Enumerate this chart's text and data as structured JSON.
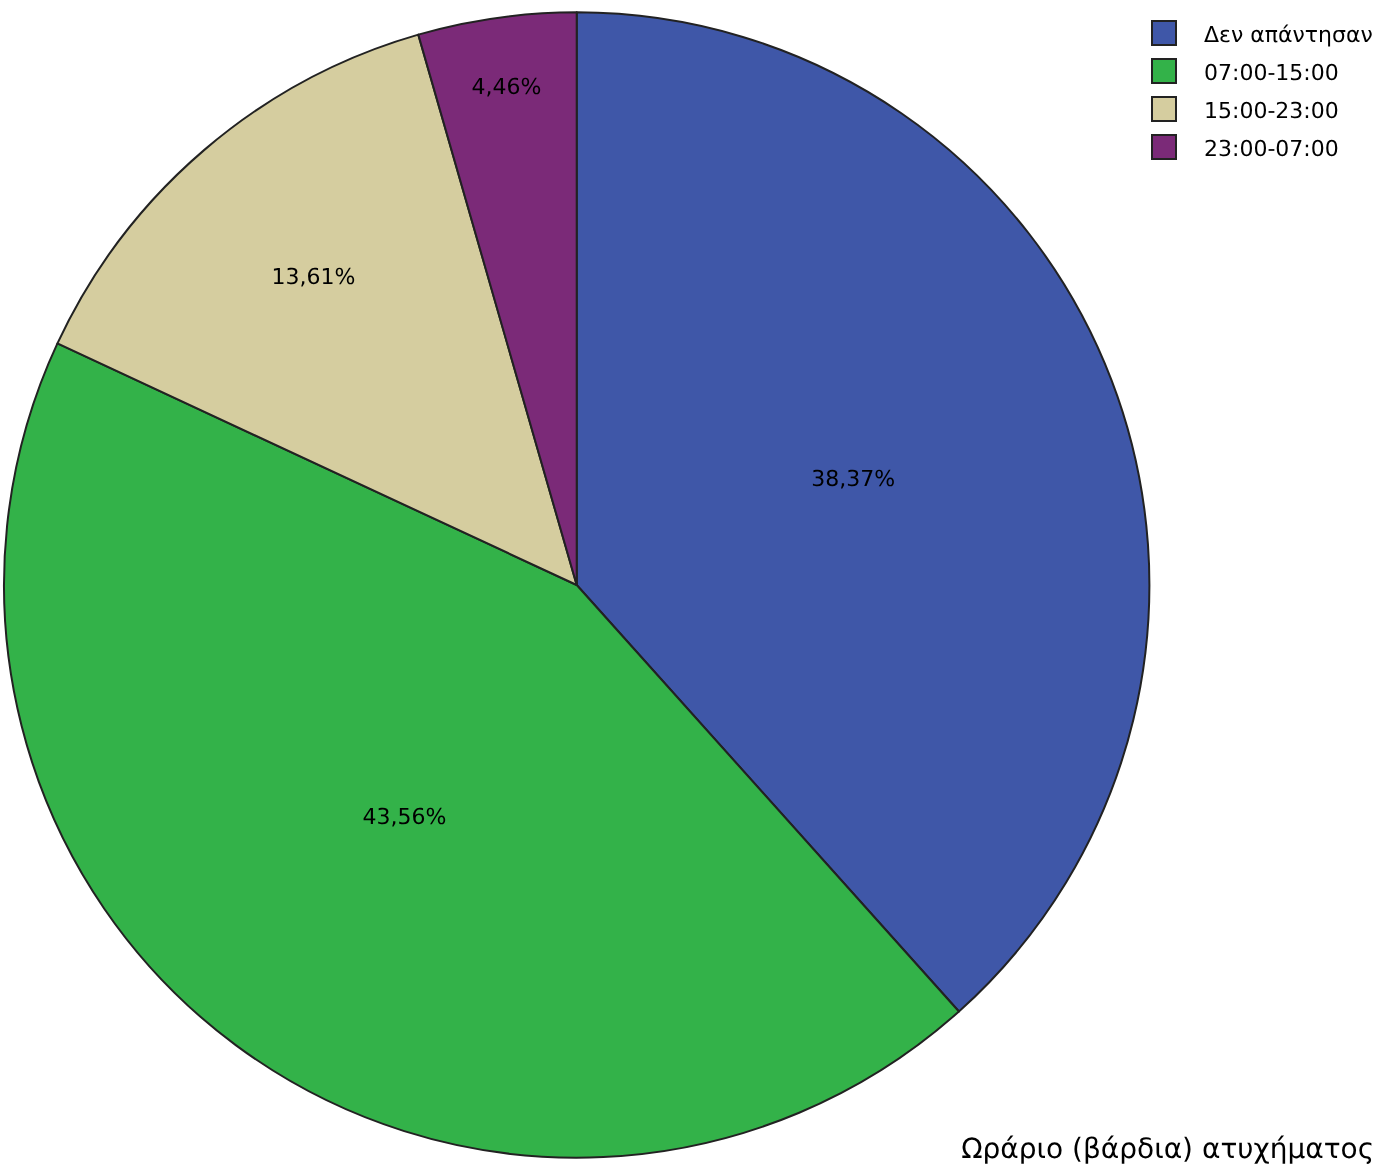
{
  "chart_data": {
    "type": "pie",
    "title": "Ωράριο (βάρδια) ατυχήματος",
    "categories": [
      "Δεν απάντησαν",
      "07:00-15:00",
      "15:00-23:00",
      "23:00-07:00"
    ],
    "values": [
      38.37,
      43.56,
      13.61,
      4.46
    ],
    "colors": [
      "#3f57a8",
      "#33b249",
      "#d5cd9f",
      "#7b2a78"
    ],
    "value_labels": [
      "38,37%",
      "43,56%",
      "13,61%",
      "4,46%"
    ],
    "legend": "top right"
  }
}
